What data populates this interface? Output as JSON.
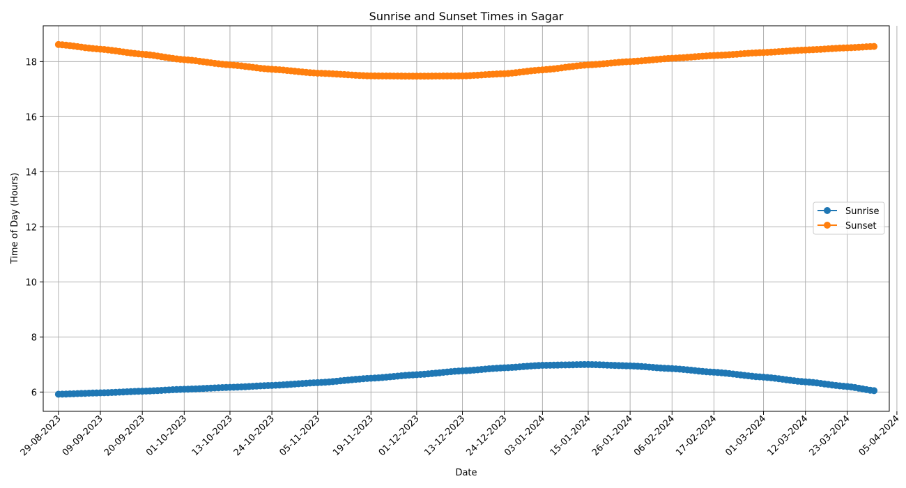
{
  "chart_data": {
    "type": "line",
    "title": "Sunrise and Sunset Times in Sagar",
    "xlabel": "Date",
    "ylabel": "Time of Day (Hours)",
    "x_start": "29-08-2023",
    "x_end": "30-03-2024",
    "x_range": [
      "2023-08-25",
      "2024-04-03"
    ],
    "xticks": [
      "29-08-2023",
      "09-09-2023",
      "20-09-2023",
      "01-10-2023",
      "13-10-2023",
      "24-10-2023",
      "05-11-2023",
      "19-11-2023",
      "01-12-2023",
      "13-12-2023",
      "24-12-2023",
      "03-01-2024",
      "15-01-2024",
      "26-01-2024",
      "06-02-2024",
      "17-02-2024",
      "01-03-2024",
      "12-03-2024",
      "23-03-2024",
      "05-04-2024"
    ],
    "ylim": [
      5.3,
      19.3
    ],
    "yticks": [
      6,
      8,
      10,
      12,
      14,
      16,
      18
    ],
    "grid": true,
    "legend_position": "center-right",
    "series": [
      {
        "name": "Sunrise",
        "color": "#1f77b4",
        "marker": "circle",
        "points": [
          [
            "29-08-2023",
            5.92
          ],
          [
            "09-09-2023",
            5.97
          ],
          [
            "20-09-2023",
            6.03
          ],
          [
            "01-10-2023",
            6.1
          ],
          [
            "13-10-2023",
            6.17
          ],
          [
            "24-10-2023",
            6.24
          ],
          [
            "05-11-2023",
            6.34
          ],
          [
            "19-11-2023",
            6.5
          ],
          [
            "01-12-2023",
            6.63
          ],
          [
            "13-12-2023",
            6.77
          ],
          [
            "24-12-2023",
            6.88
          ],
          [
            "03-01-2024",
            6.97
          ],
          [
            "15-01-2024",
            7.0
          ],
          [
            "26-01-2024",
            6.95
          ],
          [
            "06-02-2024",
            6.85
          ],
          [
            "17-02-2024",
            6.72
          ],
          [
            "01-03-2024",
            6.54
          ],
          [
            "12-03-2024",
            6.37
          ],
          [
            "23-03-2024",
            6.2
          ],
          [
            "30-03-2024",
            6.05
          ]
        ]
      },
      {
        "name": "Sunset",
        "color": "#ff7f0e",
        "marker": "circle",
        "points": [
          [
            "29-08-2023",
            18.62
          ],
          [
            "09-09-2023",
            18.45
          ],
          [
            "20-09-2023",
            18.27
          ],
          [
            "01-10-2023",
            18.07
          ],
          [
            "13-10-2023",
            17.88
          ],
          [
            "24-10-2023",
            17.72
          ],
          [
            "05-11-2023",
            17.58
          ],
          [
            "19-11-2023",
            17.48
          ],
          [
            "01-12-2023",
            17.47
          ],
          [
            "13-12-2023",
            17.48
          ],
          [
            "24-12-2023",
            17.56
          ],
          [
            "03-01-2024",
            17.7
          ],
          [
            "15-01-2024",
            17.88
          ],
          [
            "26-01-2024",
            18.0
          ],
          [
            "06-02-2024",
            18.12
          ],
          [
            "17-02-2024",
            18.22
          ],
          [
            "01-03-2024",
            18.33
          ],
          [
            "12-03-2024",
            18.42
          ],
          [
            "23-03-2024",
            18.5
          ],
          [
            "30-03-2024",
            18.55
          ]
        ]
      }
    ]
  }
}
